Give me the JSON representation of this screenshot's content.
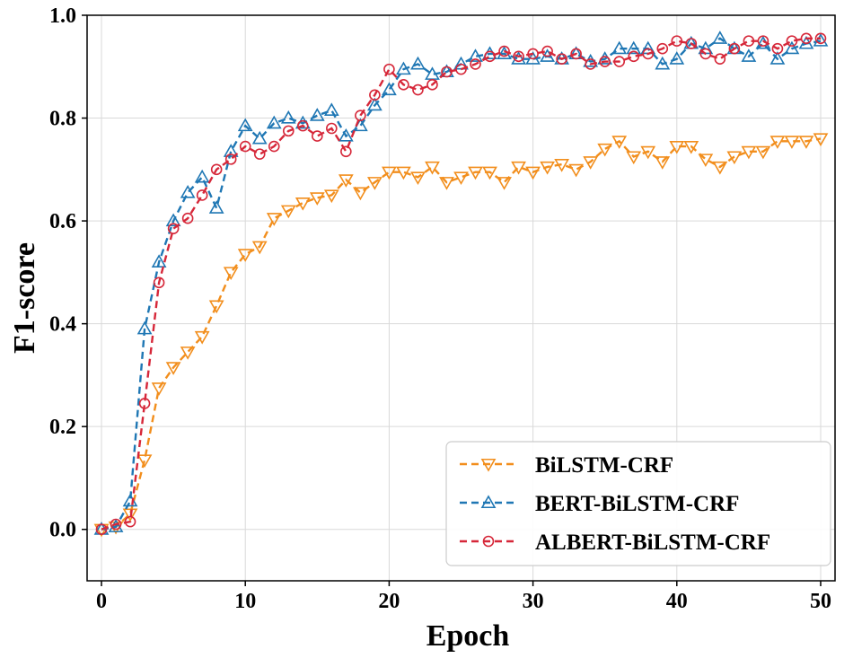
{
  "chart_data": {
    "type": "line",
    "title": "",
    "xlabel": "Epoch",
    "ylabel": "F1-score",
    "xlim": [
      -1,
      51
    ],
    "ylim": [
      -0.1,
      1.0
    ],
    "xticks": [
      0,
      10,
      20,
      30,
      40,
      50
    ],
    "yticks": [
      0.0,
      0.2,
      0.4,
      0.6,
      0.8,
      1.0
    ],
    "xtick_labels": [
      "0",
      "10",
      "20",
      "30",
      "40",
      "50"
    ],
    "ytick_labels": [
      "0.0",
      "0.2",
      "0.4",
      "0.6",
      "0.8",
      "1.0"
    ],
    "grid": true,
    "legend_position": "lower-right",
    "x": [
      0,
      1,
      2,
      3,
      4,
      5,
      6,
      7,
      8,
      9,
      10,
      11,
      12,
      13,
      14,
      15,
      16,
      17,
      18,
      19,
      20,
      21,
      22,
      23,
      24,
      25,
      26,
      27,
      28,
      29,
      30,
      31,
      32,
      33,
      34,
      35,
      36,
      37,
      38,
      39,
      40,
      41,
      42,
      43,
      44,
      45,
      46,
      47,
      48,
      49,
      50
    ],
    "series": [
      {
        "name": "BiLSTM-CRF",
        "color": "#f28e1c",
        "marker": "triangle-down",
        "values": [
          0.0,
          0.005,
          0.03,
          0.135,
          0.275,
          0.315,
          0.345,
          0.375,
          0.435,
          0.5,
          0.535,
          0.55,
          0.605,
          0.62,
          0.635,
          0.645,
          0.65,
          0.68,
          0.655,
          0.675,
          0.695,
          0.695,
          0.685,
          0.705,
          0.675,
          0.685,
          0.695,
          0.695,
          0.675,
          0.705,
          0.695,
          0.705,
          0.71,
          0.7,
          0.715,
          0.74,
          0.755,
          0.725,
          0.735,
          0.715,
          0.745,
          0.745,
          0.72,
          0.705,
          0.725,
          0.735,
          0.735,
          0.755,
          0.755,
          0.755,
          0.76
        ]
      },
      {
        "name": "BERT-BiLSTM-CRF",
        "color": "#1f77b4",
        "marker": "triangle-up",
        "values": [
          0.0,
          0.005,
          0.055,
          0.39,
          0.52,
          0.6,
          0.655,
          0.685,
          0.625,
          0.735,
          0.785,
          0.76,
          0.79,
          0.8,
          0.79,
          0.805,
          0.815,
          0.765,
          0.785,
          0.825,
          0.855,
          0.895,
          0.905,
          0.885,
          0.89,
          0.905,
          0.92,
          0.925,
          0.925,
          0.915,
          0.915,
          0.92,
          0.915,
          0.925,
          0.91,
          0.915,
          0.935,
          0.935,
          0.935,
          0.905,
          0.915,
          0.945,
          0.935,
          0.955,
          0.935,
          0.92,
          0.945,
          0.915,
          0.935,
          0.945,
          0.95
        ]
      },
      {
        "name": "ALBERT-BiLSTM-CRF",
        "color": "#d62739",
        "marker": "circle",
        "values": [
          0.0,
          0.01,
          0.015,
          0.245,
          0.48,
          0.585,
          0.605,
          0.65,
          0.7,
          0.72,
          0.745,
          0.73,
          0.745,
          0.775,
          0.785,
          0.765,
          0.78,
          0.735,
          0.805,
          0.845,
          0.895,
          0.865,
          0.855,
          0.865,
          0.89,
          0.895,
          0.905,
          0.92,
          0.93,
          0.92,
          0.925,
          0.93,
          0.915,
          0.925,
          0.905,
          0.91,
          0.91,
          0.92,
          0.925,
          0.935,
          0.95,
          0.945,
          0.925,
          0.915,
          0.935,
          0.95,
          0.95,
          0.935,
          0.95,
          0.955,
          0.955
        ]
      }
    ]
  }
}
